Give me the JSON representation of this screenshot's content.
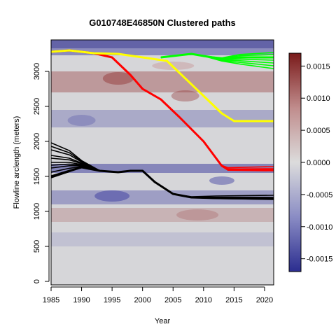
{
  "chart_data": {
    "type": "line",
    "title": "G010748E46850N Clustered paths",
    "xlabel": "Year",
    "ylabel": "Flowline arclength (meters)",
    "xlim": [
      1985,
      2021.5
    ],
    "ylim": [
      -50,
      3450
    ],
    "x_ticks": [
      1985,
      1990,
      1995,
      2000,
      2005,
      2010,
      2015,
      2020
    ],
    "y_ticks": [
      0,
      500,
      1000,
      1500,
      2000,
      2500,
      3000
    ],
    "colorbar": {
      "range": [
        -0.0017,
        0.0017
      ],
      "ticks": [
        0.0015,
        0.001,
        0.0005,
        0.0,
        -0.0005,
        -0.001,
        -0.0015
      ],
      "tick_labels": [
        "0.0015",
        "0.0010",
        "0.0005",
        "0.0000",
        "-0.0005",
        "-0.0010",
        "-0.0015"
      ],
      "colors": [
        "#2b2d8f",
        "#d9d9d9",
        "#7a1a1a"
      ]
    },
    "series": [
      {
        "color": "#000000",
        "x": [
          1985,
          1988,
          1990,
          1993,
          1996,
          1998,
          2000,
          2002,
          2005,
          2008,
          2012,
          2021.5
        ],
        "y": [
          1500,
          1580,
          1630,
          1580,
          1560,
          1580,
          1580,
          1420,
          1250,
          1200,
          1190,
          1180
        ],
        "y_start_variants": [
          1480,
          1560,
          1620,
          1660,
          1700,
          1760,
          1800,
          1880,
          1930,
          1980
        ],
        "y_end_variants": [
          1170,
          1200,
          1230
        ]
      },
      {
        "color": "#ff0000",
        "x": [
          1985,
          1988,
          1992,
          1995,
          1998,
          2000,
          2003,
          2006,
          2010,
          2013,
          2014,
          2021.5
        ],
        "y": [
          3280,
          3300,
          3260,
          3200,
          2950,
          2750,
          2600,
          2350,
          2000,
          1650,
          1600,
          1600
        ],
        "y_end_variants": [
          1580,
          1610,
          1640
        ]
      },
      {
        "color": "#ffff00",
        "x": [
          1985,
          1988,
          1992,
          1996,
          2000,
          2004,
          2007,
          2010,
          2013,
          2015,
          2021.5
        ],
        "y": [
          3280,
          3300,
          3260,
          3250,
          3200,
          3150,
          2900,
          2650,
          2400,
          2290,
          2290
        ]
      },
      {
        "color": "#00ff00",
        "x": [
          2003,
          2006,
          2008,
          2010,
          2013,
          2016,
          2021.5
        ],
        "y": [
          3200,
          3230,
          3250,
          3220,
          3180,
          3200,
          3200
        ],
        "y_end_variants": [
          3040,
          3080,
          3120,
          3160,
          3200,
          3240,
          3270
        ]
      }
    ]
  }
}
